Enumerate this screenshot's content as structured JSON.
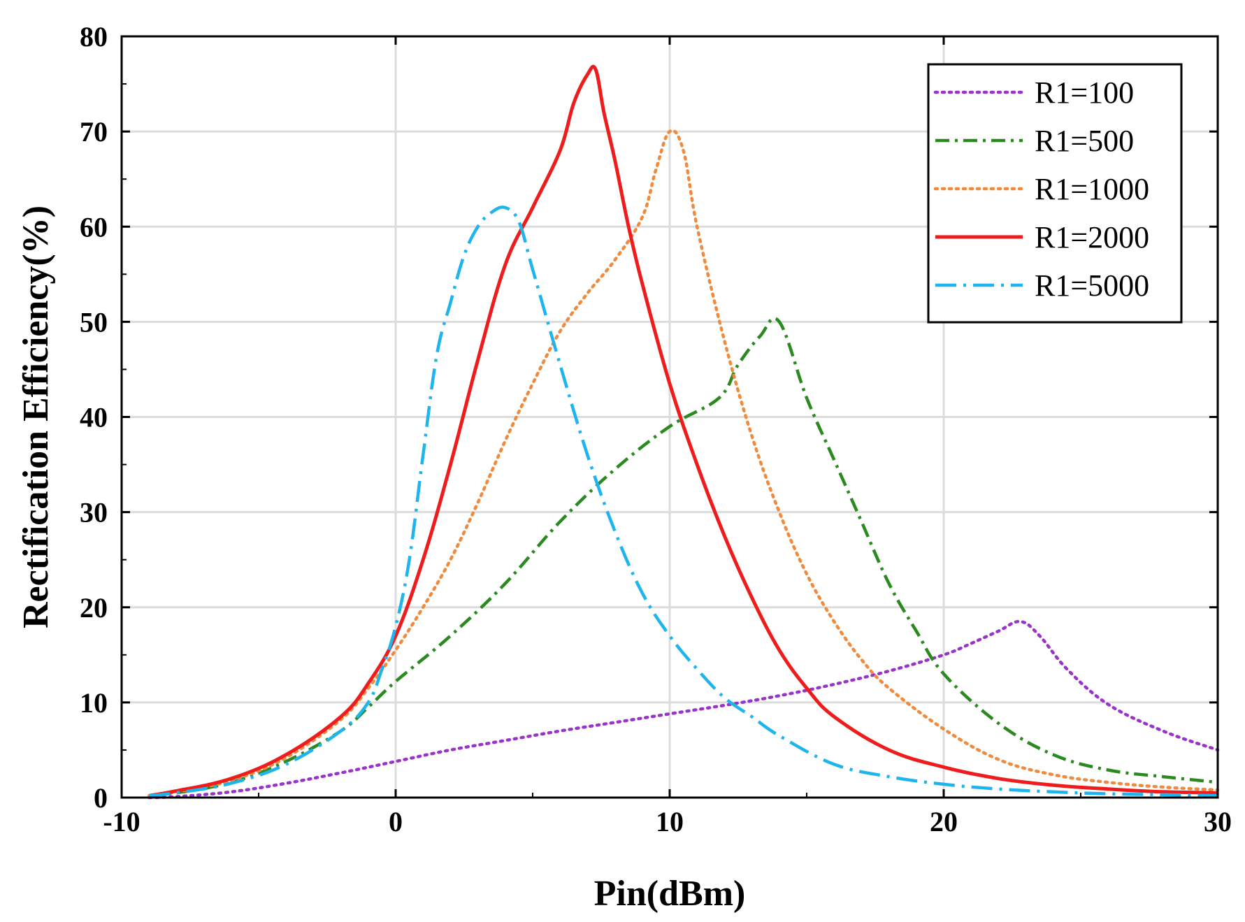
{
  "chart_data": {
    "type": "line",
    "title": "",
    "xlabel": "Pin(dBm)",
    "ylabel": "Rectification Efficiency(%)",
    "xlim": [
      -10,
      30
    ],
    "ylim": [
      0,
      80
    ],
    "xticks": [
      -10,
      0,
      10,
      20,
      30
    ],
    "yticks": [
      0,
      10,
      20,
      30,
      40,
      50,
      60,
      70,
      80
    ],
    "grid": true,
    "legend_position": "top-right",
    "series": [
      {
        "name": "R1=100",
        "color": "#9933cc",
        "style": "dotted",
        "x": [
          -9,
          -8,
          -6,
          -4,
          -2,
          0,
          2,
          4,
          6,
          8,
          10,
          12,
          14,
          16,
          18,
          20,
          21,
          22,
          22.8,
          23.5,
          24.5,
          26,
          28,
          30
        ],
        "y": [
          0,
          0.1,
          0.6,
          1.5,
          2.6,
          3.8,
          5.0,
          6.0,
          7.0,
          7.9,
          8.8,
          9.7,
          10.7,
          11.9,
          13.3,
          15.0,
          16.2,
          17.5,
          18.5,
          17.0,
          13.5,
          9.8,
          7.0,
          5.0
        ]
      },
      {
        "name": "R1=500",
        "color": "#2a8a1f",
        "style": "dashdot",
        "x": [
          -9,
          -8,
          -6,
          -4,
          -2,
          -1,
          0,
          2,
          4,
          6,
          8,
          10,
          11.8,
          12.5,
          13.3,
          14,
          15,
          16,
          17,
          18,
          19,
          20,
          22,
          24,
          26,
          28,
          30
        ],
        "y": [
          0.2,
          0.5,
          1.6,
          3.8,
          7.0,
          9.5,
          12.2,
          17.0,
          22.5,
          29.0,
          34.5,
          39.0,
          42.0,
          45.5,
          48.5,
          50.0,
          42.0,
          35.5,
          29.0,
          22.5,
          17.5,
          13.0,
          7.8,
          4.5,
          2.9,
          2.2,
          1.6
        ]
      },
      {
        "name": "R1=1000",
        "color": "#f08a3c",
        "style": "dotted",
        "x": [
          -9,
          -8,
          -6,
          -4,
          -2,
          -1,
          0,
          1,
          2,
          3,
          4,
          5,
          6,
          7,
          8,
          9,
          9.5,
          10,
          10.5,
          11,
          12,
          13,
          14,
          15,
          16,
          17,
          18,
          20,
          22,
          24,
          26,
          28,
          30
        ],
        "y": [
          0.2,
          0.6,
          1.8,
          4.2,
          8.2,
          11.5,
          15.5,
          20.0,
          25.0,
          31.0,
          37.5,
          43.5,
          49.0,
          53.0,
          56.5,
          61.0,
          66.0,
          70.0,
          68.0,
          60.0,
          48.0,
          38.0,
          30.0,
          23.5,
          18.5,
          14.5,
          11.5,
          7.2,
          4.0,
          2.4,
          1.6,
          1.1,
          0.8
        ]
      },
      {
        "name": "R1=2000",
        "color": "#ee1c1c",
        "style": "solid",
        "x": [
          -9,
          -8,
          -6,
          -4,
          -2,
          -1,
          0,
          1,
          2,
          3,
          4,
          5,
          6,
          6.5,
          7,
          7.3,
          7.6,
          8,
          8.5,
          9,
          10,
          11,
          12,
          13,
          14,
          15,
          16,
          18,
          20,
          22,
          24,
          26,
          28,
          30
        ],
        "y": [
          0.2,
          0.7,
          2.0,
          4.5,
          8.5,
          12.0,
          17.0,
          25.0,
          35.0,
          46.0,
          56.0,
          62.0,
          68.0,
          73.0,
          76.0,
          76.5,
          72.0,
          67.0,
          60.0,
          54.0,
          43.5,
          35.0,
          27.5,
          21.0,
          15.5,
          11.5,
          8.5,
          5.0,
          3.2,
          2.0,
          1.3,
          0.9,
          0.6,
          0.5
        ]
      },
      {
        "name": "R1=5000",
        "color": "#1eb4ee",
        "style": "dashdash-dot",
        "x": [
          -9,
          -8,
          -6,
          -4,
          -2,
          -1,
          -0.5,
          0,
          0.5,
          1,
          1.5,
          2,
          2.5,
          3,
          3.5,
          4,
          4.5,
          5,
          6,
          7,
          8,
          9,
          10,
          11,
          12,
          13,
          14,
          16,
          18,
          20,
          22,
          24,
          26,
          28,
          30
        ],
        "y": [
          0.2,
          0.5,
          1.5,
          3.5,
          7.0,
          10.0,
          13.5,
          18.0,
          25.0,
          36.0,
          46.5,
          52.0,
          57.0,
          60.0,
          61.5,
          62.0,
          60.5,
          55.5,
          45.5,
          36.0,
          28.0,
          21.5,
          17.0,
          13.5,
          10.5,
          8.5,
          6.5,
          3.5,
          2.2,
          1.4,
          0.9,
          0.6,
          0.4,
          0.3,
          0.2
        ]
      }
    ]
  }
}
